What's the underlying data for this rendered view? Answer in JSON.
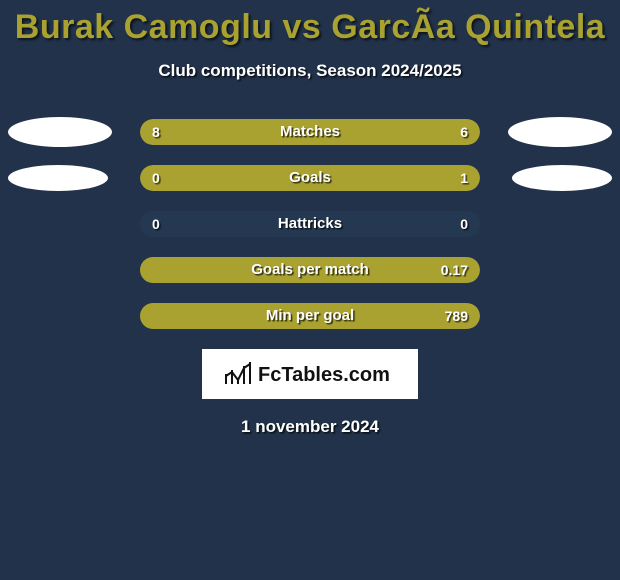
{
  "title": "Burak Camoglu vs GarcÃ­a Quintela",
  "subtitle": "Club competitions, Season 2024/2025",
  "date": "1 november 2024",
  "logo_text": "FcTables.com",
  "colors": {
    "background": "#21324a",
    "title": "#a9a130",
    "text": "#ffffff",
    "pill_empty": "#253852",
    "fill_left": "#a9a130",
    "fill_right": "#a9a130",
    "avatar": "#ffffff",
    "logo_bg": "#ffffff",
    "logo_fg": "#111111"
  },
  "stats": [
    {
      "label": "Matches",
      "left_val": "8",
      "right_val": "6",
      "left_pct": 57,
      "right_pct": 43,
      "avatar": "big"
    },
    {
      "label": "Goals",
      "left_val": "0",
      "right_val": "1",
      "left_pct": 20,
      "right_pct": 80,
      "avatar": "small"
    },
    {
      "label": "Hattricks",
      "left_val": "0",
      "right_val": "0",
      "left_pct": 0,
      "right_pct": 0,
      "avatar": "none"
    },
    {
      "label": "Goals per match",
      "left_val": "",
      "right_val": "0.17",
      "left_pct": 0,
      "right_pct": 100,
      "avatar": "none"
    },
    {
      "label": "Min per goal",
      "left_val": "",
      "right_val": "789",
      "left_pct": 0,
      "right_pct": 100,
      "avatar": "none"
    }
  ]
}
